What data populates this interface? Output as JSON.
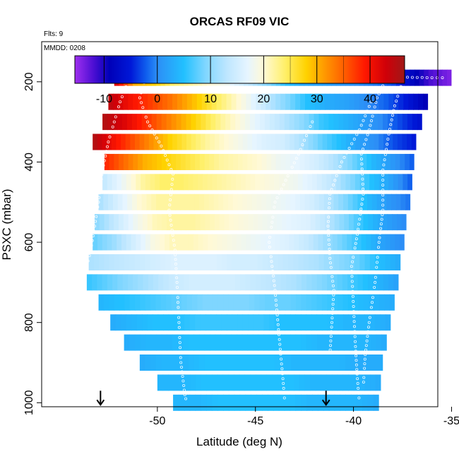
{
  "chart_data": {
    "type": "heatmap",
    "title": "ORCAS RF09 VIC",
    "annotations": {
      "flights": "Flts: 9",
      "date": "MMDD: 0208"
    },
    "xlabel": "Latitude (deg N)",
    "ylabel": "PSXC (mbar)",
    "xlim": [
      -55.9,
      -35.7
    ],
    "ylim": [
      1010,
      100
    ],
    "x_ticks": [
      -50,
      -45,
      -40,
      -35
    ],
    "x_tick_labels": [
      "-50",
      "-45",
      "-40",
      "-35"
    ],
    "y_ticks": [
      200,
      400,
      600,
      800,
      1000
    ],
    "y_tick_labels": [
      "200",
      "400",
      "600",
      "800",
      "1000"
    ],
    "colorbar": {
      "range": [
        -15.5,
        46.5
      ],
      "ticks": [
        -10,
        0,
        10,
        20,
        30,
        40
      ],
      "tick_labels": [
        "-10",
        "0",
        "10",
        "20",
        "30",
        "40"
      ],
      "stops": [
        [
          -15.5,
          "#9f2fef"
        ],
        [
          -12.0,
          "#4c0fd3"
        ],
        [
          -9.0,
          "#0000b8"
        ],
        [
          -5.0,
          "#0018d8"
        ],
        [
          -2.0,
          "#1060ee"
        ],
        [
          0.0,
          "#2c8ef6"
        ],
        [
          5.0,
          "#22c0ff"
        ],
        [
          9.0,
          "#7fd6ff"
        ],
        [
          13.0,
          "#bde6ff"
        ],
        [
          17.0,
          "#e6f5ff"
        ],
        [
          20.0,
          "#fff9d6"
        ],
        [
          24.0,
          "#fff06a"
        ],
        [
          28.0,
          "#ffd200"
        ],
        [
          31.0,
          "#ffa000"
        ],
        [
          35.0,
          "#ff6000"
        ],
        [
          39.0,
          "#ff1800"
        ],
        [
          43.0,
          "#d00008"
        ],
        [
          46.5,
          "#a01818"
        ]
      ]
    },
    "layers": [
      {
        "p": 190,
        "x0": -52.2,
        "x1": -35.0,
        "v": [
          42,
          30,
          28,
          24,
          22,
          20,
          18,
          14,
          10,
          6,
          3,
          2,
          1,
          0,
          -1,
          -3,
          -8,
          -12,
          -14
        ]
      },
      {
        "p": 250,
        "x0": -52.5,
        "x1": -36.2,
        "v": [
          44,
          40,
          37,
          34,
          30,
          26,
          22,
          18,
          13,
          9,
          5,
          3,
          2,
          0,
          -2,
          -5,
          -9
        ]
      },
      {
        "p": 300,
        "x0": -52.8,
        "x1": -36.5,
        "v": [
          45,
          42,
          38,
          34,
          30,
          26,
          22,
          19,
          16,
          13,
          10,
          6,
          4,
          2,
          0,
          -3,
          -6
        ]
      },
      {
        "p": 350,
        "x0": -53.3,
        "x1": -36.8,
        "v": [
          45,
          40,
          36,
          32,
          28,
          25,
          22,
          20,
          18,
          16,
          15,
          12,
          8,
          5,
          2,
          0,
          -3,
          -5
        ]
      },
      {
        "p": 400,
        "x0": -52.7,
        "x1": -36.9,
        "v": [
          38,
          34,
          30,
          28,
          26,
          24,
          22,
          21,
          20,
          18,
          17,
          15,
          12,
          8,
          4,
          1,
          -2
        ]
      },
      {
        "p": 450,
        "x0": -52.8,
        "x1": -37.0,
        "v": [
          14,
          18,
          22,
          24,
          24,
          23,
          22,
          21,
          20,
          19,
          18,
          16,
          13,
          9,
          5,
          2,
          -2
        ]
      },
      {
        "p": 500,
        "x0": -53.0,
        "x1": -37.1,
        "v": [
          12,
          16,
          20,
          22,
          22,
          22,
          21,
          20,
          19,
          18,
          17,
          15,
          12,
          8,
          4,
          1,
          -1
        ]
      },
      {
        "p": 550,
        "x0": -53.2,
        "x1": -37.3,
        "v": [
          10,
          14,
          18,
          21,
          22,
          22,
          21,
          20,
          19,
          18,
          17,
          16,
          13,
          9,
          5,
          2,
          0
        ]
      },
      {
        "p": 600,
        "x0": -53.3,
        "x1": -37.4,
        "v": [
          8,
          11,
          15,
          19,
          21,
          21,
          20,
          19,
          18,
          17,
          16,
          14,
          11,
          8,
          5,
          2,
          0
        ]
      },
      {
        "p": 650,
        "x0": -53.5,
        "x1": -37.6,
        "v": [
          12,
          13,
          14,
          15,
          16,
          16,
          16,
          15,
          15,
          14,
          13,
          12,
          10,
          8,
          5,
          3
        ]
      },
      {
        "p": 700,
        "x0": -53.6,
        "x1": -37.7,
        "v": [
          6,
          8,
          10,
          12,
          14,
          15,
          15,
          15,
          14,
          13,
          12,
          10,
          8,
          6,
          4,
          2
        ]
      },
      {
        "p": 750,
        "x0": -53.0,
        "x1": -37.9,
        "v": [
          4,
          5,
          6,
          7,
          8,
          9,
          9,
          9,
          8,
          8,
          7,
          6,
          5,
          4,
          3
        ]
      },
      {
        "p": 800,
        "x0": -52.4,
        "x1": -38.1,
        "v": [
          3,
          4,
          5,
          5,
          6,
          6,
          6,
          6,
          5,
          5,
          5,
          4,
          4,
          3
        ]
      },
      {
        "p": 850,
        "x0": -51.7,
        "x1": -38.3,
        "v": [
          3,
          4,
          4,
          5,
          5,
          5,
          5,
          5,
          5,
          4,
          4,
          4,
          3
        ]
      },
      {
        "p": 900,
        "x0": -50.9,
        "x1": -38.5,
        "v": [
          3,
          4,
          4,
          5,
          5,
          5,
          5,
          4,
          4,
          4,
          3,
          3
        ]
      },
      {
        "p": 950,
        "x0": -50.0,
        "x1": -38.6,
        "v": [
          4,
          4,
          5,
          5,
          5,
          5,
          5,
          4,
          4,
          4,
          3
        ]
      },
      {
        "p": 1000,
        "x0": -49.2,
        "x1": -38.7,
        "v": [
          4,
          4,
          5,
          5,
          5,
          5,
          4,
          4,
          4,
          3
        ]
      }
    ],
    "flight_tracks": [
      [
        [
          -51.5,
          200
        ],
        [
          -51.9,
          250
        ],
        [
          -52.2,
          300
        ],
        [
          -52.5,
          350
        ],
        [
          -52.8,
          420
        ],
        [
          -53.0,
          500
        ],
        [
          -53.2,
          560
        ],
        [
          -53.4,
          620
        ],
        [
          -53.6,
          660
        ]
      ],
      [
        [
          -50.6,
          190
        ],
        [
          -50.9,
          240
        ],
        [
          -50.5,
          300
        ],
        [
          -49.8,
          360
        ],
        [
          -49.2,
          430
        ],
        [
          -49.4,
          520
        ],
        [
          -49.1,
          620
        ],
        [
          -49.0,
          700
        ],
        [
          -48.9,
          800
        ],
        [
          -48.8,
          900
        ],
        [
          -48.6,
          980
        ],
        [
          -48.5,
          1000
        ]
      ],
      [
        [
          -42.1,
          300
        ],
        [
          -42.8,
          380
        ],
        [
          -44.0,
          500
        ],
        [
          -44.3,
          600
        ],
        [
          -44.0,
          720
        ],
        [
          -43.8,
          830
        ],
        [
          -43.6,
          940
        ],
        [
          -43.5,
          1000
        ]
      ],
      [
        [
          -39.1,
          250
        ],
        [
          -39.7,
          320
        ],
        [
          -40.6,
          400
        ],
        [
          -41.2,
          480
        ],
        [
          -41.3,
          560
        ],
        [
          -41.2,
          640
        ],
        [
          -41.0,
          720
        ],
        [
          -41.1,
          800
        ],
        [
          -41.2,
          880
        ]
      ],
      [
        [
          -38.4,
          200
        ],
        [
          -38.8,
          240
        ],
        [
          -39.2,
          320
        ],
        [
          -39.6,
          380
        ],
        [
          -39.5,
          480
        ],
        [
          -39.8,
          580
        ],
        [
          -40.1,
          660
        ],
        [
          -40.0,
          760
        ],
        [
          -39.9,
          860
        ],
        [
          -39.8,
          940
        ],
        [
          -39.7,
          1000
        ]
      ],
      [
        [
          -37.5,
          200
        ],
        [
          -37.9,
          260
        ],
        [
          -38.2,
          330
        ],
        [
          -38.5,
          420
        ],
        [
          -38.5,
          520
        ],
        [
          -38.7,
          600
        ],
        [
          -38.9,
          700
        ],
        [
          -39.2,
          800
        ],
        [
          -39.4,
          880
        ],
        [
          -39.5,
          960
        ]
      ],
      [
        [
          -39.0,
          185
        ],
        [
          -38.0,
          188
        ],
        [
          -37.0,
          189
        ],
        [
          -36.0,
          190
        ],
        [
          -35.2,
          190
        ]
      ]
    ],
    "markers": [
      {
        "x": -52.9,
        "p": 1000,
        "shape": "down-arrow"
      },
      {
        "x": -41.4,
        "p": 1000,
        "shape": "down-arrow"
      }
    ]
  }
}
